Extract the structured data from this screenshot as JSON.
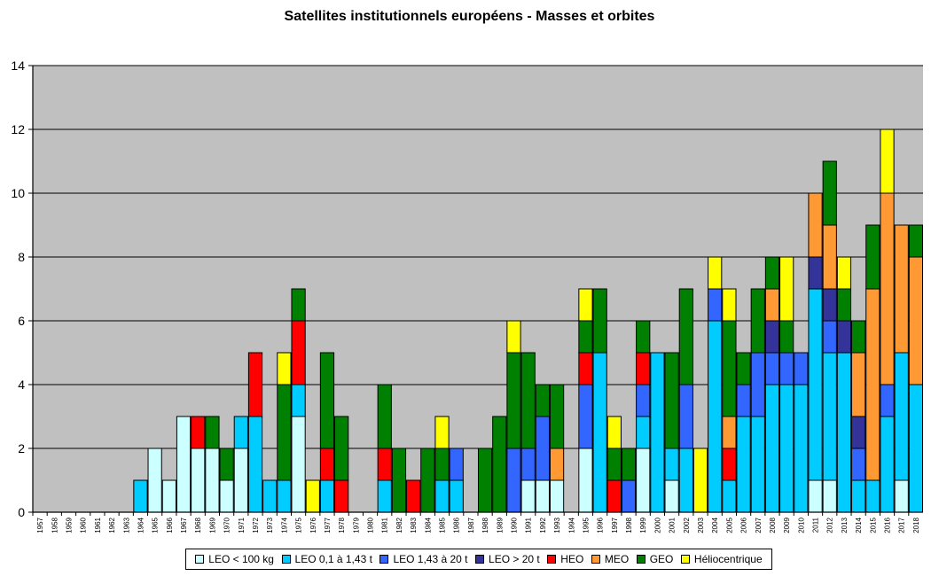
{
  "chart_data": {
    "type": "bar",
    "stacked": true,
    "title": "Satellites institutionnels européens - Masses et orbites",
    "xlabel": "",
    "ylabel": "",
    "ylim": [
      0,
      14
    ],
    "yticks": [
      0,
      2,
      4,
      6,
      8,
      10,
      12,
      14
    ],
    "grid": true,
    "legend_position": "bottom",
    "plot_background": "#c0c0c0",
    "categories": [
      "1957",
      "1958",
      "1959",
      "1960",
      "1961",
      "1962",
      "1963",
      "1964",
      "1965",
      "1966",
      "1967",
      "1968",
      "1969",
      "1970",
      "1971",
      "1972",
      "1973",
      "1974",
      "1975",
      "1976",
      "1977",
      "1978",
      "1979",
      "1980",
      "1981",
      "1982",
      "1983",
      "1984",
      "1985",
      "1986",
      "1987",
      "1988",
      "1989",
      "1990",
      "1991",
      "1992",
      "1993",
      "1994",
      "1995",
      "1996",
      "1997",
      "1998",
      "1999",
      "2000",
      "2001",
      "2002",
      "2003",
      "2004",
      "2005",
      "2006",
      "2007",
      "2008",
      "2009",
      "2010",
      "2011",
      "2012",
      "2013",
      "2014",
      "2015",
      "2016",
      "2017",
      "2018"
    ],
    "series": [
      {
        "name": "LEO < 100 kg",
        "color": "#ccffff",
        "values": [
          0,
          0,
          0,
          0,
          0,
          0,
          0,
          0,
          2,
          1,
          3,
          2,
          2,
          1,
          2,
          0,
          0,
          0,
          3,
          0,
          0,
          0,
          0,
          0,
          0,
          0,
          0,
          0,
          0,
          0,
          0,
          0,
          0,
          0,
          1,
          1,
          1,
          0,
          2,
          0,
          0,
          0,
          2,
          0,
          1,
          0,
          0,
          0,
          0,
          0,
          0,
          0,
          0,
          0,
          1,
          1,
          0,
          0,
          0,
          0,
          1,
          0
        ]
      },
      {
        "name": "LEO 0,1 à 1,43 t",
        "color": "#00ccff",
        "values": [
          0,
          0,
          0,
          0,
          0,
          0,
          0,
          1,
          0,
          0,
          0,
          0,
          0,
          0,
          1,
          3,
          1,
          1,
          1,
          0,
          1,
          0,
          0,
          0,
          1,
          0,
          0,
          0,
          1,
          1,
          0,
          0,
          0,
          0,
          0,
          0,
          0,
          0,
          0,
          5,
          0,
          0,
          1,
          5,
          1,
          2,
          0,
          6,
          1,
          3,
          3,
          4,
          4,
          4,
          6,
          4,
          5,
          1,
          1,
          3,
          4,
          4
        ]
      },
      {
        "name": "LEO 1,43 à 20 t",
        "color": "#3366ff",
        "values": [
          0,
          0,
          0,
          0,
          0,
          0,
          0,
          0,
          0,
          0,
          0,
          0,
          0,
          0,
          0,
          0,
          0,
          0,
          0,
          0,
          0,
          0,
          0,
          0,
          0,
          0,
          0,
          0,
          0,
          1,
          0,
          0,
          0,
          2,
          1,
          2,
          0,
          0,
          2,
          0,
          0,
          1,
          1,
          0,
          0,
          2,
          0,
          1,
          0,
          1,
          2,
          1,
          1,
          1,
          0,
          1,
          0,
          1,
          0,
          1,
          0,
          0
        ]
      },
      {
        "name": "LEO > 20 t",
        "color": "#333399",
        "values": [
          0,
          0,
          0,
          0,
          0,
          0,
          0,
          0,
          0,
          0,
          0,
          0,
          0,
          0,
          0,
          0,
          0,
          0,
          0,
          0,
          0,
          0,
          0,
          0,
          0,
          0,
          0,
          0,
          0,
          0,
          0,
          0,
          0,
          0,
          0,
          0,
          0,
          0,
          0,
          0,
          0,
          0,
          0,
          0,
          0,
          0,
          0,
          0,
          0,
          0,
          0,
          1,
          0,
          0,
          1,
          1,
          1,
          1,
          0,
          0,
          0,
          0
        ]
      },
      {
        "name": "HEO",
        "color": "#ff0000",
        "values": [
          0,
          0,
          0,
          0,
          0,
          0,
          0,
          0,
          0,
          0,
          0,
          1,
          0,
          0,
          0,
          2,
          0,
          0,
          2,
          0,
          1,
          1,
          0,
          0,
          1,
          0,
          1,
          0,
          0,
          0,
          0,
          0,
          0,
          0,
          0,
          0,
          0,
          0,
          1,
          0,
          1,
          0,
          1,
          0,
          0,
          0,
          0,
          0,
          1,
          0,
          0,
          0,
          0,
          0,
          0,
          0,
          0,
          0,
          0,
          0,
          0,
          0
        ]
      },
      {
        "name": "MEO",
        "color": "#ff9933",
        "values": [
          0,
          0,
          0,
          0,
          0,
          0,
          0,
          0,
          0,
          0,
          0,
          0,
          0,
          0,
          0,
          0,
          0,
          0,
          0,
          0,
          0,
          0,
          0,
          0,
          0,
          0,
          0,
          0,
          0,
          0,
          0,
          0,
          0,
          0,
          0,
          0,
          1,
          0,
          0,
          0,
          0,
          0,
          0,
          0,
          0,
          0,
          0,
          0,
          1,
          0,
          0,
          1,
          0,
          0,
          2,
          2,
          0,
          2,
          6,
          6,
          4,
          4
        ]
      },
      {
        "name": "GEO",
        "color": "#008000",
        "values": [
          0,
          0,
          0,
          0,
          0,
          0,
          0,
          0,
          0,
          0,
          0,
          0,
          1,
          1,
          0,
          0,
          0,
          3,
          1,
          0,
          3,
          2,
          0,
          0,
          2,
          2,
          0,
          2,
          1,
          0,
          0,
          2,
          3,
          3,
          3,
          1,
          2,
          0,
          1,
          2,
          1,
          1,
          1,
          0,
          3,
          3,
          0,
          0,
          3,
          1,
          2,
          1,
          1,
          0,
          0,
          2,
          1,
          1,
          2,
          0,
          0,
          1
        ]
      },
      {
        "name": "Héliocentrique",
        "color": "#ffff00",
        "values": [
          0,
          0,
          0,
          0,
          0,
          0,
          0,
          0,
          0,
          0,
          0,
          0,
          0,
          0,
          0,
          0,
          0,
          1,
          0,
          1,
          0,
          0,
          0,
          0,
          0,
          0,
          0,
          0,
          1,
          0,
          0,
          0,
          0,
          1,
          0,
          0,
          0,
          0,
          1,
          0,
          1,
          0,
          0,
          0,
          0,
          0,
          2,
          1,
          1,
          0,
          0,
          0,
          2,
          0,
          0,
          0,
          1,
          0,
          0,
          2,
          0,
          0
        ]
      }
    ]
  }
}
